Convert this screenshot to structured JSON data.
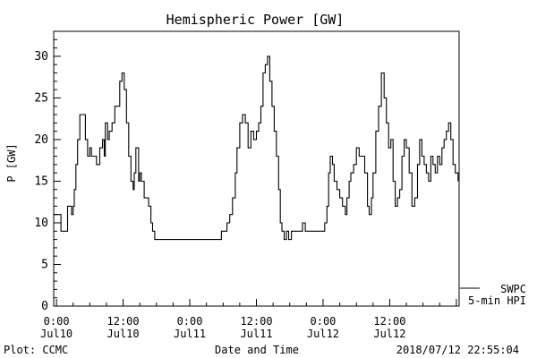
{
  "chart_data": {
    "type": "line",
    "title": "Hemispheric Power [GW]",
    "xlabel": "Date and Time",
    "ylabel": "P [GW]",
    "ylim": [
      0,
      33
    ],
    "yticks": [
      0,
      5,
      10,
      15,
      20,
      25,
      30
    ],
    "xlim": [
      -0.5,
      72.5
    ],
    "xticks": [
      {
        "x": 0,
        "line1": "0:00",
        "line2": "Jul10"
      },
      {
        "x": 12,
        "line1": "12:00",
        "line2": "Jul10"
      },
      {
        "x": 24,
        "line1": "0:00",
        "line2": "Jul11"
      },
      {
        "x": 36,
        "line1": "12:00",
        "line2": "Jul11"
      },
      {
        "x": 48,
        "line1": "0:00",
        "line2": "Jul12"
      },
      {
        "x": 60,
        "line1": "12:00",
        "line2": "Jul12"
      }
    ],
    "grid": false,
    "legend_position": "bottom-right",
    "legend": [
      "SWPC",
      "5-min HPI"
    ],
    "series": [
      {
        "color": "#000000",
        "x": [
          -0.5,
          0.3,
          0.8,
          1.5,
          2.0,
          2.3,
          2.7,
          3.0,
          3.2,
          3.5,
          3.8,
          4.2,
          4.8,
          5.2,
          5.6,
          6.0,
          6.3,
          6.7,
          7.2,
          7.8,
          8.3,
          8.6,
          8.8,
          9.2,
          9.5,
          10.0,
          10.5,
          11.0,
          11.4,
          11.8,
          12.2,
          12.6,
          13.0,
          13.4,
          13.8,
          14.0,
          14.3,
          14.8,
          15.0,
          15.3,
          15.8,
          16.2,
          16.6,
          17.0,
          17.3,
          17.7,
          18.2,
          18.6,
          19.2,
          19.5,
          20.5,
          22.0,
          24.0,
          26.0,
          27.5,
          28.5,
          29.2,
          29.7,
          30.2,
          30.7,
          31.2,
          31.7,
          32.2,
          32.5,
          33.0,
          33.5,
          34.0,
          34.5,
          35.0,
          35.5,
          36.0,
          36.4,
          36.8,
          37.2,
          37.6,
          38.0,
          38.4,
          38.8,
          39.2,
          39.6,
          40.0,
          40.3,
          40.6,
          41.0,
          41.4,
          41.8,
          42.3,
          42.8,
          43.3,
          43.8,
          44.3,
          44.8,
          45.5,
          46.0,
          46.5,
          47.0,
          47.5,
          48.0,
          48.3,
          48.7,
          49.0,
          49.3,
          49.7,
          50.0,
          50.5,
          51.0,
          51.5,
          52.0,
          52.3,
          52.7,
          53.0,
          53.5,
          54.0,
          54.5,
          55.0,
          55.5,
          56.0,
          56.3,
          56.7,
          57.0,
          57.5,
          58.0,
          58.5,
          59.0,
          59.4,
          59.8,
          60.2,
          60.6,
          61.0,
          61.4,
          61.8,
          62.2,
          62.6,
          63.0,
          63.5,
          64.0,
          64.5,
          65.0,
          65.4,
          65.8,
          66.2,
          66.6,
          67.0,
          67.4,
          67.8,
          68.2,
          68.6,
          69.0,
          69.4,
          69.8,
          70.2,
          70.6,
          71.0,
          71.4,
          71.8,
          72.3
        ],
        "y": [
          11,
          11,
          9,
          9,
          12,
          12,
          11,
          12,
          14,
          17,
          20,
          23,
          23,
          20,
          18,
          19,
          18,
          18,
          17,
          19,
          20,
          18,
          22,
          20,
          21,
          22,
          24,
          24,
          27,
          28,
          26,
          22,
          18,
          15,
          14,
          16,
          19,
          15,
          16,
          15,
          13,
          13,
          12,
          10,
          9,
          8,
          8,
          8,
          8,
          8,
          8,
          8,
          8,
          8,
          8,
          8,
          8,
          9,
          9,
          10,
          11,
          13,
          16,
          19,
          22,
          23,
          22,
          19,
          21,
          20,
          21,
          22,
          24,
          28,
          29,
          30,
          27,
          24,
          21,
          18,
          14,
          10,
          9,
          8,
          9,
          8,
          9,
          9,
          9,
          9,
          10,
          9,
          9,
          9,
          9,
          9,
          9,
          9,
          10,
          12,
          16,
          18,
          17,
          15,
          14,
          13,
          12,
          11,
          13,
          15,
          16,
          17,
          19,
          18,
          18,
          16,
          12,
          11,
          13,
          16,
          21,
          24,
          28,
          25,
          22,
          19,
          20,
          15,
          12,
          13,
          14,
          18,
          20,
          19,
          16,
          12,
          13,
          17,
          20,
          18,
          17,
          16,
          15,
          18,
          17,
          16,
          18,
          17,
          19,
          20,
          21,
          22,
          20,
          17,
          16,
          15
        ]
      }
    ]
  },
  "footer": {
    "plot_label": "Plot: CCMC",
    "timestamp": "2018/07/12 22:55:04"
  }
}
